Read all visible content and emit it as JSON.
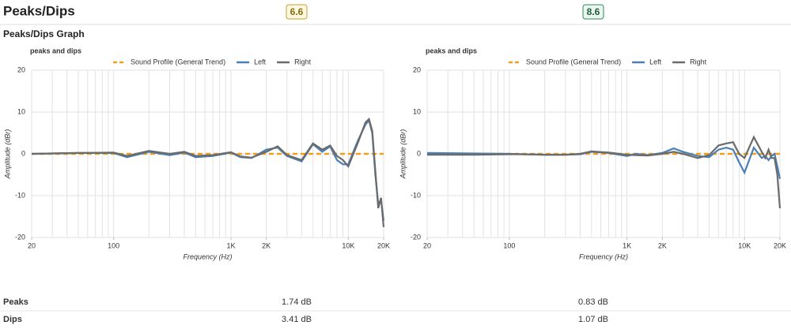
{
  "header": {
    "title": "Peaks/Dips",
    "scores": [
      "6.6",
      "8.6"
    ],
    "section": "Peaks/Dips Graph"
  },
  "chart_data": [
    {
      "type": "line",
      "title": "peaks and dips",
      "xlabel": "Frequency (Hz)",
      "ylabel": "Amplitude (dBr)",
      "xscale": "log",
      "xlim": [
        20,
        20000
      ],
      "ylim": [
        -20,
        20
      ],
      "yticks": [
        -20,
        -10,
        0,
        10,
        20
      ],
      "xticks": [
        20,
        100,
        {
          "value": 1000,
          "label": "1K"
        },
        {
          "value": 2000,
          "label": "2K"
        },
        {
          "value": 10000,
          "label": "10K"
        },
        {
          "value": 20000,
          "label": "20K"
        }
      ],
      "xgrid": [
        20,
        30,
        40,
        50,
        60,
        70,
        80,
        90,
        100,
        200,
        300,
        400,
        500,
        600,
        700,
        800,
        900,
        1000,
        2000,
        3000,
        4000,
        5000,
        6000,
        7000,
        8000,
        9000,
        10000,
        20000
      ],
      "grid": true,
      "x": [
        20,
        50,
        100,
        130,
        200,
        300,
        400,
        500,
        700,
        1000,
        1200,
        1500,
        2000,
        2500,
        3000,
        4000,
        5000,
        6000,
        7000,
        8000,
        9000,
        10000,
        12000,
        14000,
        15000,
        16000,
        17000,
        18000,
        19000,
        20000
      ],
      "series": [
        {
          "name": "Sound Profile (General Trend)",
          "color": "#f0a01e",
          "dashed": true,
          "values": [
            0,
            0,
            0,
            0,
            0,
            0,
            0,
            0,
            0,
            0,
            0,
            0,
            0,
            0,
            0,
            0,
            0,
            0,
            0,
            0,
            0,
            0,
            0,
            0,
            0,
            0,
            0,
            0,
            0,
            0
          ]
        },
        {
          "name": "Left",
          "color": "#4a7fb5",
          "values": [
            0,
            0.2,
            0.2,
            -0.8,
            0.5,
            -0.3,
            0.3,
            -0.8,
            -0.5,
            0.3,
            -0.8,
            -1,
            1,
            1.5,
            -0.5,
            -1.8,
            2.3,
            0.5,
            1.8,
            -1.5,
            -2.5,
            -2.5,
            3,
            7,
            8,
            5,
            -5,
            -12,
            -11,
            -16
          ]
        },
        {
          "name": "Right",
          "color": "#6b6b6b",
          "values": [
            0,
            0.2,
            0.3,
            -0.5,
            0.7,
            0,
            0.5,
            -0.5,
            -0.3,
            0.4,
            -0.6,
            -0.9,
            0.5,
            1.8,
            -0.3,
            -1.5,
            2.5,
            1,
            2,
            -0.5,
            -1.5,
            -3,
            2.5,
            7.5,
            8.3,
            5.5,
            -4,
            -13,
            -10.5,
            -17.5
          ]
        }
      ]
    },
    {
      "type": "line",
      "title": "peaks and dips",
      "xlabel": "Frequency (Hz)",
      "ylabel": "Amplitude (dBr)",
      "xscale": "log",
      "xlim": [
        20,
        20000
      ],
      "ylim": [
        -20,
        20
      ],
      "yticks": [
        -20,
        -10,
        0,
        10,
        20
      ],
      "xticks": [
        20,
        100,
        {
          "value": 1000,
          "label": "1K"
        },
        {
          "value": 2000,
          "label": "2K"
        },
        {
          "value": 10000,
          "label": "10K"
        },
        {
          "value": 20000,
          "label": "20K"
        }
      ],
      "xgrid": [
        20,
        30,
        40,
        50,
        60,
        70,
        80,
        90,
        100,
        200,
        300,
        400,
        500,
        600,
        700,
        800,
        900,
        1000,
        2000,
        3000,
        4000,
        5000,
        6000,
        7000,
        8000,
        9000,
        10000,
        20000
      ],
      "grid": true,
      "x": [
        20,
        50,
        100,
        130,
        200,
        300,
        400,
        500,
        700,
        1000,
        1200,
        1500,
        2000,
        2500,
        3000,
        4000,
        5000,
        6000,
        7000,
        8000,
        9000,
        10000,
        12000,
        14000,
        15000,
        16000,
        17000,
        18000,
        19000,
        20000
      ],
      "series": [
        {
          "name": "Sound Profile (General Trend)",
          "color": "#f0a01e",
          "dashed": true,
          "values": [
            0,
            0,
            0,
            0,
            0,
            0,
            0,
            0,
            0,
            0,
            0,
            0,
            0,
            0,
            0,
            0,
            0,
            0,
            0,
            0,
            0,
            0,
            0,
            0,
            0,
            0,
            0,
            0,
            0,
            0
          ]
        },
        {
          "name": "Left",
          "color": "#4a7fb5",
          "values": [
            0.2,
            0.1,
            0,
            -0.1,
            -0.2,
            -0.2,
            -0.1,
            0.5,
            0.2,
            -0.5,
            0,
            -0.3,
            0.2,
            1.3,
            0.5,
            -0.5,
            -0.8,
            1,
            1.5,
            1,
            -2,
            -4.5,
            1.5,
            -1,
            -0.5,
            -1.5,
            -0.5,
            0,
            -3,
            -6
          ]
        },
        {
          "name": "Right",
          "color": "#6b6b6b",
          "values": [
            -0.2,
            -0.2,
            -0.1,
            -0.1,
            -0.2,
            -0.2,
            0,
            0.6,
            0.3,
            -0.2,
            -0.3,
            -0.4,
            0,
            0.5,
            0,
            -1,
            -0.3,
            2,
            2.5,
            2.8,
            0,
            -1,
            4,
            0.5,
            -1,
            1,
            -1,
            -1,
            -5,
            -13
          ]
        }
      ]
    }
  ],
  "table": {
    "rows": [
      [
        "Peaks",
        "1.74 dB",
        "0.83 dB"
      ],
      [
        "Dips",
        "3.41 dB",
        "1.07 dB"
      ]
    ]
  }
}
